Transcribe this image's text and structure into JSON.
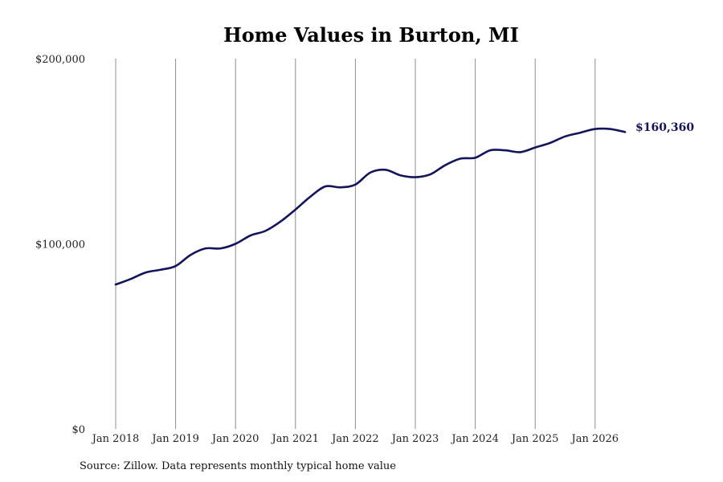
{
  "chart_data": {
    "type": "line",
    "title": "Home Values in Burton, MI",
    "xlabel": "",
    "ylabel": "",
    "ylim": [
      0,
      200000
    ],
    "y_ticks": [
      {
        "value": 0,
        "label": "$0"
      },
      {
        "value": 100000,
        "label": "$100,000"
      },
      {
        "value": 200000,
        "label": "$200,000"
      }
    ],
    "x_ticks": [
      "Jan 2018",
      "Jan 2019",
      "Jan 2020",
      "Jan 2021",
      "Jan 2022",
      "Jan 2023",
      "Jan 2024",
      "Jan 2025",
      "Jan 2026"
    ],
    "x_range": [
      "2018-01",
      "2026-07"
    ],
    "grid": "vertical at x ticks",
    "legend": "none",
    "end_label": "$160,360",
    "colors": {
      "line": "#14145a",
      "grid": "#8c8c8c",
      "end_label": "#14145a"
    },
    "series": [
      {
        "x": [
          "2018-01",
          "2018-04",
          "2018-07",
          "2018-10",
          "2019-01",
          "2019-04",
          "2019-07",
          "2019-10",
          "2020-01",
          "2020-04",
          "2020-07",
          "2020-10",
          "2021-01",
          "2021-04",
          "2021-07",
          "2021-10",
          "2022-01",
          "2022-04",
          "2022-07",
          "2022-10",
          "2023-01",
          "2023-04",
          "2023-07",
          "2023-10",
          "2024-01",
          "2024-04",
          "2024-07",
          "2024-10",
          "2025-01",
          "2025-04",
          "2025-07",
          "2025-10",
          "2026-01",
          "2026-04",
          "2026-07"
        ],
        "values": [
          78000,
          81000,
          84500,
          86000,
          88000,
          94000,
          97500,
          97500,
          100000,
          104500,
          107000,
          112000,
          118500,
          125500,
          131000,
          130500,
          132000,
          138500,
          140000,
          137000,
          136000,
          137500,
          142500,
          146000,
          146500,
          150500,
          150500,
          149500,
          152000,
          154500,
          158000,
          160000,
          162000,
          162000,
          160360
        ]
      }
    ]
  },
  "source": "Source: Zillow. Data represents monthly typical home value"
}
